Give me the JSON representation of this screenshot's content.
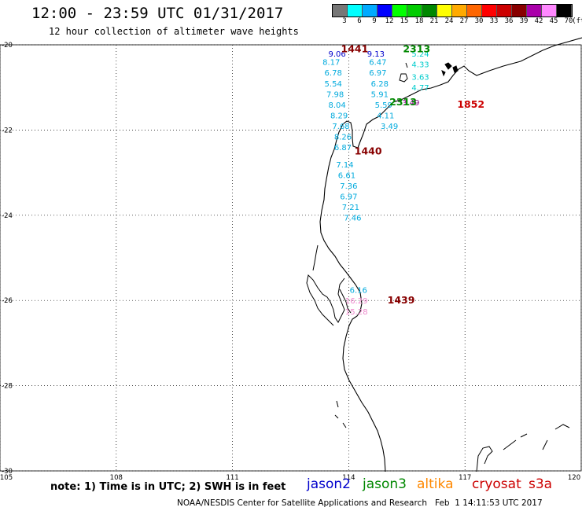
{
  "title": "12:00 - 23:59 UTC 01/31/2017",
  "subtitle": "12 hour collection of altimeter wave heights",
  "color_scale": {
    "unit": "(ft)",
    "labels": [
      "3",
      "6",
      "9",
      "12",
      "15",
      "18",
      "21",
      "24",
      "27",
      "30",
      "33",
      "36",
      "39",
      "42",
      "45",
      "70"
    ],
    "colors": [
      "#777777",
      "#00ffff",
      "#00aaff",
      "#0000ff",
      "#00ff00",
      "#00cc00",
      "#008800",
      "#ffff00",
      "#ffaa00",
      "#ff6600",
      "#ff0000",
      "#cc0000",
      "#880000",
      "#aa00aa",
      "#ff88ff",
      "#000000"
    ]
  },
  "map": {
    "lon_range": [
      105,
      120
    ],
    "lat_range": [
      -30,
      -20
    ],
    "lon_ticks": [
      "105",
      "108",
      "111",
      "114",
      "117",
      "120"
    ],
    "lat_ticks": [
      "-20",
      "-22",
      "-24",
      "-26",
      "-28",
      "-30"
    ],
    "grid_style": "dotted",
    "observations": [
      {
        "lon": 113.7,
        "lat": -20.2,
        "value": "9.06",
        "color": "#0000cc"
      },
      {
        "lon": 113.55,
        "lat": -20.4,
        "value": "8.17",
        "color": "#00aadd"
      },
      {
        "lon": 113.6,
        "lat": -20.65,
        "value": "6.78",
        "color": "#00aadd"
      },
      {
        "lon": 113.6,
        "lat": -20.9,
        "value": "5.54",
        "color": "#00aadd"
      },
      {
        "lon": 113.65,
        "lat": -21.15,
        "value": "7.98",
        "color": "#00aadd"
      },
      {
        "lon": 113.7,
        "lat": -21.4,
        "value": "8.04",
        "color": "#00aadd"
      },
      {
        "lon": 113.75,
        "lat": -21.65,
        "value": "8.29",
        "color": "#00aadd"
      },
      {
        "lon": 113.8,
        "lat": -21.9,
        "value": "7.68",
        "color": "#00aadd"
      },
      {
        "lon": 113.85,
        "lat": -22.15,
        "value": "8.26",
        "color": "#00aadd"
      },
      {
        "lon": 113.85,
        "lat": -22.4,
        "value": "6.87",
        "color": "#00aadd"
      },
      {
        "lon": 113.9,
        "lat": -22.8,
        "value": "7.14",
        "color": "#00aadd"
      },
      {
        "lon": 113.95,
        "lat": -23.05,
        "value": "6.61",
        "color": "#00aadd"
      },
      {
        "lon": 114.0,
        "lat": -23.3,
        "value": "7.36",
        "color": "#00aadd"
      },
      {
        "lon": 114.0,
        "lat": -23.55,
        "value": "6.97",
        "color": "#00aadd"
      },
      {
        "lon": 114.05,
        "lat": -23.8,
        "value": "7.21",
        "color": "#00aadd"
      },
      {
        "lon": 114.1,
        "lat": -24.05,
        "value": "7.46",
        "color": "#00aadd"
      },
      {
        "lon": 114.7,
        "lat": -20.2,
        "value": "9.13",
        "color": "#0000cc"
      },
      {
        "lon": 114.75,
        "lat": -20.4,
        "value": "6.47",
        "color": "#00aadd"
      },
      {
        "lon": 114.75,
        "lat": -20.65,
        "value": "6.97",
        "color": "#00aadd"
      },
      {
        "lon": 114.8,
        "lat": -20.9,
        "value": "6.28",
        "color": "#00aadd"
      },
      {
        "lon": 114.8,
        "lat": -21.15,
        "value": "5.91",
        "color": "#00aadd"
      },
      {
        "lon": 114.9,
        "lat": -21.4,
        "value": "5.59",
        "color": "#00aadd"
      },
      {
        "lon": 114.95,
        "lat": -21.65,
        "value": "4.11",
        "color": "#00aadd"
      },
      {
        "lon": 115.05,
        "lat": -21.9,
        "value": "3.49",
        "color": "#00aadd"
      },
      {
        "lon": 115.85,
        "lat": -20.2,
        "value": "5.24",
        "color": "#00cccc"
      },
      {
        "lon": 115.85,
        "lat": -20.45,
        "value": "4.33",
        "color": "#00cccc"
      },
      {
        "lon": 115.85,
        "lat": -20.75,
        "value": "3.63",
        "color": "#00cccc"
      },
      {
        "lon": 115.85,
        "lat": -21.0,
        "value": "4.77",
        "color": "#00cccc"
      },
      {
        "lon": 115.6,
        "lat": -21.35,
        "value": "3.49",
        "color": "#880088"
      },
      {
        "lon": 114.25,
        "lat": -25.75,
        "value": "6.16",
        "color": "#00aadd"
      },
      {
        "lon": 114.2,
        "lat": -26.0,
        "value": "16.29",
        "color": "#ee88cc"
      },
      {
        "lon": 114.2,
        "lat": -26.25,
        "value": "15.28",
        "color": "#ee88cc"
      }
    ],
    "pass_labels": [
      {
        "lon": 113.8,
        "lat": -20.1,
        "text": "1441",
        "color": "#880000"
      },
      {
        "lon": 115.4,
        "lat": -20.1,
        "text": "2313",
        "color": "#008800"
      },
      {
        "lon": 115.05,
        "lat": -21.35,
        "text": "2313",
        "color": "#008800"
      },
      {
        "lon": 116.8,
        "lat": -21.4,
        "text": "1852",
        "color": "#cc0000"
      },
      {
        "lon": 114.15,
        "lat": -22.5,
        "text": "1440",
        "color": "#880000"
      },
      {
        "lon": 115.0,
        "lat": -26.0,
        "text": "1439",
        "color": "#880000"
      }
    ]
  },
  "footer": {
    "note": "note: 1) Time is in UTC; 2) SWH is in feet",
    "satellites": [
      {
        "name": "jason2",
        "color": "#0000cc"
      },
      {
        "name": "jason3",
        "color": "#008800"
      },
      {
        "name": "altika",
        "color": "#ff8800"
      },
      {
        "name": "cryosat",
        "color": "#cc0000"
      },
      {
        "name": "s3a",
        "color": "#cc0000"
      }
    ],
    "credit": "NOAA/NESDIS Center for Satellite Applications and Research   Feb  1 14:11:53 UTC 2017"
  }
}
